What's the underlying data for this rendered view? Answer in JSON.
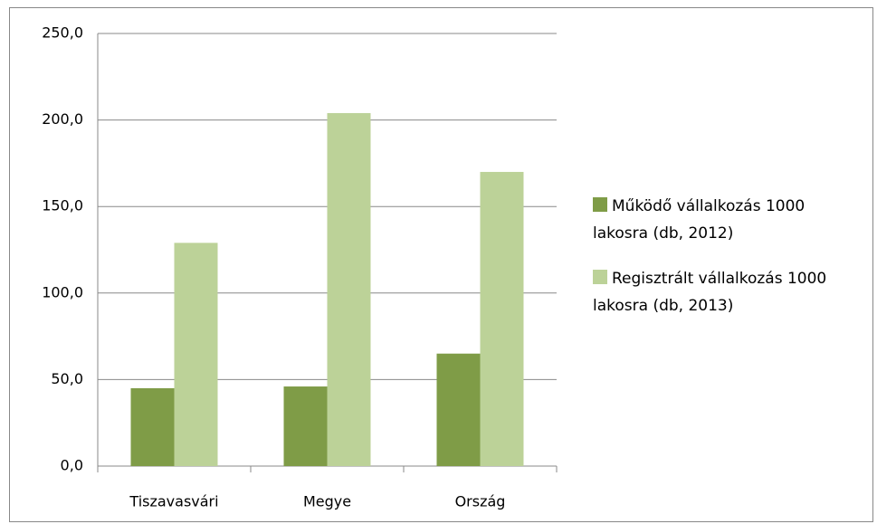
{
  "chart_data": {
    "type": "bar",
    "categories": [
      "Tiszavasvári",
      "Megye",
      "Ország"
    ],
    "series": [
      {
        "name": "Működő vállalkozás 1000 lakosra (db, 2012)",
        "color": "#7f9c47",
        "values": [
          45,
          46,
          65
        ]
      },
      {
        "name": "Regisztrált vállalkozás 1000 lakosra (db, 2013)",
        "color": "#bcd298",
        "values": [
          129,
          204,
          170
        ]
      }
    ],
    "ylim": [
      0,
      250
    ],
    "yticks": [
      {
        "value": 0,
        "label": "0,0"
      },
      {
        "value": 50,
        "label": "50,0"
      },
      {
        "value": 100,
        "label": "100,0"
      },
      {
        "value": 150,
        "label": "150,0"
      },
      {
        "value": 200,
        "label": "200,0"
      },
      {
        "value": 250,
        "label": "250,0"
      }
    ],
    "grid": true,
    "legend": "right"
  }
}
